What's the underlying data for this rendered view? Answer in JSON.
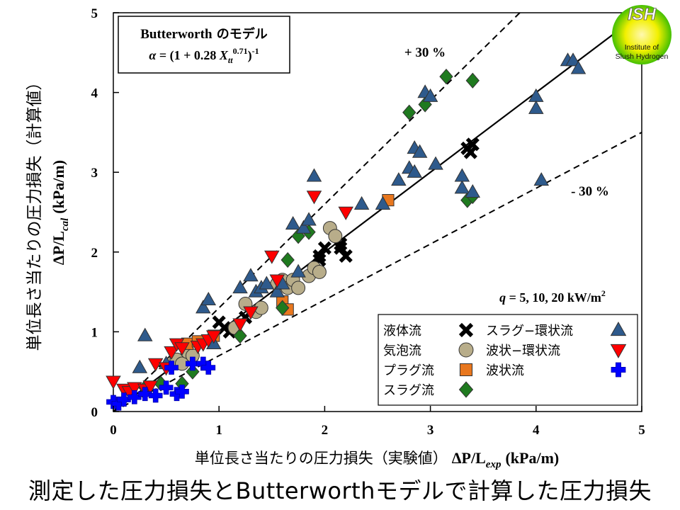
{
  "chart_data": {
    "type": "scatter",
    "xlabel_jp": "単位長さ当たりの圧力損失（実験値）",
    "xlabel_sym": "ΔP/L",
    "xlabel_sub": "exp",
    "xlabel_unit": "(kPa/m)",
    "ylabel_jp": "単位長さ当たりの圧力損失（計算値）",
    "ylabel_sym": "ΔP/L",
    "ylabel_sub": "cal",
    "ylabel_unit": "(kPa/m)",
    "xlim": [
      0,
      5
    ],
    "ylim": [
      0,
      5
    ],
    "x_ticks": [
      "0",
      "1",
      "2",
      "3",
      "4",
      "5"
    ],
    "y_ticks": [
      "0",
      "1",
      "2",
      "3",
      "4",
      "5"
    ],
    "grid": false,
    "model_box": {
      "line1_latin": "Butterworth",
      "line1_jp": " のモデル",
      "alpha": "α",
      "eq_a": " = (1 + 0.28 ",
      "X": "X",
      "tt": "tt",
      "exp_071": "0.71",
      "close": ")",
      "exp_neg1": "-1"
    },
    "reference_lines": [
      {
        "label": "",
        "slope": 1.0,
        "style": "solid"
      },
      {
        "label": "+ 30 %",
        "slope": 1.3,
        "style": "dashed"
      },
      {
        "label": "- 30 %",
        "slope": 0.7,
        "style": "dashed"
      }
    ],
    "q_note": {
      "q": "q",
      "rest": " = 5, 10, 20 kW/m",
      "sup": "2"
    },
    "legend_position": "bottom-right",
    "series": [
      {
        "name": "液体流",
        "marker": "x",
        "color": "#000000",
        "points": [
          [
            1.0,
            1.12
          ],
          [
            1.05,
            1.05
          ],
          [
            1.1,
            1.0
          ],
          [
            1.25,
            1.18
          ],
          [
            1.3,
            1.25
          ],
          [
            1.95,
            1.95
          ],
          [
            2.0,
            2.05
          ],
          [
            1.95,
            1.9
          ],
          [
            2.15,
            2.05
          ],
          [
            2.2,
            1.95
          ],
          [
            2.15,
            2.1
          ],
          [
            3.35,
            3.3
          ],
          [
            3.4,
            3.35
          ],
          [
            3.38,
            3.25
          ]
        ]
      },
      {
        "name": "気泡流",
        "marker": "circle",
        "color": "#b8ad8a",
        "points": [
          [
            0.55,
            0.6
          ],
          [
            0.6,
            0.65
          ],
          [
            0.65,
            0.6
          ],
          [
            0.7,
            0.75
          ],
          [
            0.75,
            0.7
          ],
          [
            1.15,
            1.05
          ],
          [
            1.25,
            1.35
          ],
          [
            1.35,
            1.25
          ],
          [
            1.4,
            1.3
          ],
          [
            1.55,
            1.6
          ],
          [
            1.6,
            1.65
          ],
          [
            1.65,
            1.55
          ],
          [
            1.7,
            1.65
          ],
          [
            1.75,
            1.55
          ],
          [
            1.85,
            1.7
          ],
          [
            1.9,
            1.8
          ],
          [
            1.95,
            1.75
          ],
          [
            2.05,
            2.3
          ],
          [
            2.1,
            2.2
          ]
        ]
      },
      {
        "name": "プラグ流",
        "marker": "square",
        "color": "#e8771e",
        "points": [
          [
            0.7,
            0.85
          ],
          [
            0.8,
            0.88
          ],
          [
            0.95,
            0.95
          ],
          [
            1.6,
            1.38
          ],
          [
            1.65,
            1.28
          ],
          [
            2.6,
            2.65
          ]
        ]
      },
      {
        "name": "スラグ流",
        "marker": "diamond",
        "color": "#1f7a1f",
        "points": [
          [
            0.3,
            0.3
          ],
          [
            0.45,
            0.35
          ],
          [
            0.65,
            0.35
          ],
          [
            0.75,
            0.5
          ],
          [
            1.2,
            0.95
          ],
          [
            1.6,
            1.3
          ],
          [
            1.75,
            2.2
          ],
          [
            1.85,
            2.25
          ],
          [
            1.65,
            1.9
          ],
          [
            2.8,
            3.75
          ],
          [
            2.95,
            3.85
          ],
          [
            3.15,
            4.2
          ],
          [
            3.4,
            4.15
          ],
          [
            3.35,
            2.65
          ],
          [
            3.4,
            2.7
          ]
        ]
      },
      {
        "name": "スラグ−環状流",
        "marker": "triangle-up",
        "color": "#2e5a8c",
        "points": [
          [
            0.25,
            0.55
          ],
          [
            0.3,
            0.95
          ],
          [
            0.5,
            0.6
          ],
          [
            0.85,
            1.3
          ],
          [
            0.9,
            1.4
          ],
          [
            0.95,
            0.85
          ],
          [
            1.2,
            1.55
          ],
          [
            1.35,
            1.5
          ],
          [
            1.4,
            1.55
          ],
          [
            1.45,
            1.6
          ],
          [
            1.3,
            1.7
          ],
          [
            1.55,
            1.5
          ],
          [
            1.6,
            1.6
          ],
          [
            1.75,
            1.75
          ],
          [
            1.7,
            2.35
          ],
          [
            1.8,
            2.3
          ],
          [
            1.85,
            2.4
          ],
          [
            1.9,
            2.95
          ],
          [
            2.35,
            2.6
          ],
          [
            2.55,
            2.6
          ],
          [
            2.7,
            2.9
          ],
          [
            2.8,
            3.05
          ],
          [
            2.85,
            3.0
          ],
          [
            2.85,
            3.3
          ],
          [
            2.9,
            3.25
          ],
          [
            2.95,
            4.0
          ],
          [
            3.0,
            3.95
          ],
          [
            3.05,
            3.1
          ],
          [
            3.3,
            2.8
          ],
          [
            3.3,
            2.95
          ],
          [
            3.4,
            2.75
          ],
          [
            4.0,
            3.95
          ],
          [
            4.0,
            3.8
          ],
          [
            4.05,
            2.9
          ],
          [
            4.3,
            4.4
          ],
          [
            4.35,
            4.4
          ],
          [
            4.4,
            4.3
          ]
        ]
      },
      {
        "name": "波状−環状流",
        "marker": "triangle-down",
        "color": "#ff0000",
        "points": [
          [
            0.0,
            0.38
          ],
          [
            0.1,
            0.28
          ],
          [
            0.15,
            0.25
          ],
          [
            0.2,
            0.3
          ],
          [
            0.3,
            0.28
          ],
          [
            0.35,
            0.32
          ],
          [
            0.4,
            0.6
          ],
          [
            0.5,
            0.55
          ],
          [
            0.55,
            0.75
          ],
          [
            0.6,
            0.85
          ],
          [
            0.65,
            0.8
          ],
          [
            0.8,
            0.82
          ],
          [
            0.85,
            0.85
          ],
          [
            0.9,
            0.9
          ],
          [
            0.95,
            0.95
          ],
          [
            1.2,
            1.1
          ],
          [
            1.3,
            1.25
          ],
          [
            1.5,
            1.95
          ],
          [
            1.55,
            1.65
          ],
          [
            1.9,
            2.7
          ],
          [
            2.2,
            2.5
          ]
        ]
      },
      {
        "name": "波状流",
        "marker": "plus",
        "color": "#0000ff",
        "points": [
          [
            0.0,
            0.12
          ],
          [
            0.05,
            0.1
          ],
          [
            0.1,
            0.15
          ],
          [
            0.2,
            0.18
          ],
          [
            0.3,
            0.22
          ],
          [
            0.4,
            0.2
          ],
          [
            0.5,
            0.3
          ],
          [
            0.55,
            0.55
          ],
          [
            0.6,
            0.22
          ],
          [
            0.65,
            0.25
          ],
          [
            0.75,
            0.6
          ],
          [
            0.85,
            0.6
          ],
          [
            0.9,
            0.55
          ]
        ]
      }
    ]
  },
  "logo": {
    "mark": "ISH",
    "line1": "Institute of",
    "line2": "Slush Hydrogen"
  },
  "caption": "測定した圧力損失とButterworthモデルで計算した圧力損失"
}
